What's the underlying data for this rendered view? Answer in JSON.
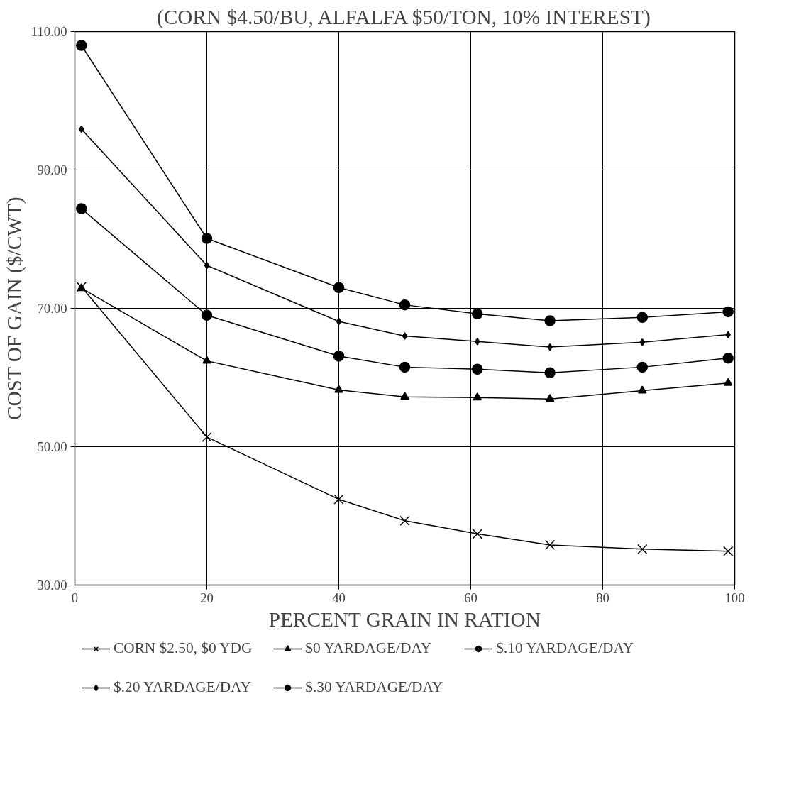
{
  "chart_data": {
    "type": "line",
    "title": "(CORN $4.50/BU, ALFALFA $50/TON, 10% INTEREST)",
    "xlabel": "PERCENT GRAIN IN RATION",
    "ylabel": "COST OF GAIN ($/CWT)",
    "x": [
      1,
      20,
      40,
      50,
      61,
      72,
      86,
      99
    ],
    "series": [
      {
        "name": "CORN $2.50, $0 YDG",
        "color": "#000000",
        "marker": "cross",
        "values": [
          73.1,
          51.4,
          42.4,
          39.3,
          37.4,
          35.8,
          35.2,
          34.9
        ]
      },
      {
        "name": "$0 YARDAGE/DAY",
        "color": "#000000",
        "marker": "triangle",
        "values": [
          72.9,
          62.4,
          58.2,
          57.2,
          57.1,
          56.9,
          58.1,
          59.2
        ]
      },
      {
        "name": "$.10 YARDAGE/DAY",
        "color": "#000000",
        "marker": "circle",
        "values": [
          84.4,
          69.0,
          63.1,
          61.5,
          61.2,
          60.7,
          61.5,
          62.8
        ]
      },
      {
        "name": "$.20 YARDAGE/DAY",
        "color": "#000000",
        "marker": "diamond",
        "values": [
          95.9,
          76.2,
          68.1,
          66.0,
          65.2,
          64.4,
          65.1,
          66.2
        ]
      },
      {
        "name": "$.30 YARDAGE/DAY",
        "color": "#000000",
        "marker": "circle",
        "values": [
          108.0,
          80.1,
          73.0,
          70.5,
          69.2,
          68.2,
          68.7,
          69.5
        ]
      }
    ],
    "xlim": [
      0,
      100
    ],
    "xticks": [
      0,
      20,
      40,
      60,
      80,
      100
    ],
    "ylim": [
      30,
      110
    ],
    "yticks": [
      {
        "value": 30,
        "label": "30.00"
      },
      {
        "value": 50,
        "label": "50.00"
      },
      {
        "value": 70,
        "label": "70.00"
      },
      {
        "value": 90,
        "label": "90.00"
      },
      {
        "value": 110,
        "label": "110.00"
      }
    ],
    "grid": true,
    "legend": "bottom",
    "line_style": "solid"
  }
}
